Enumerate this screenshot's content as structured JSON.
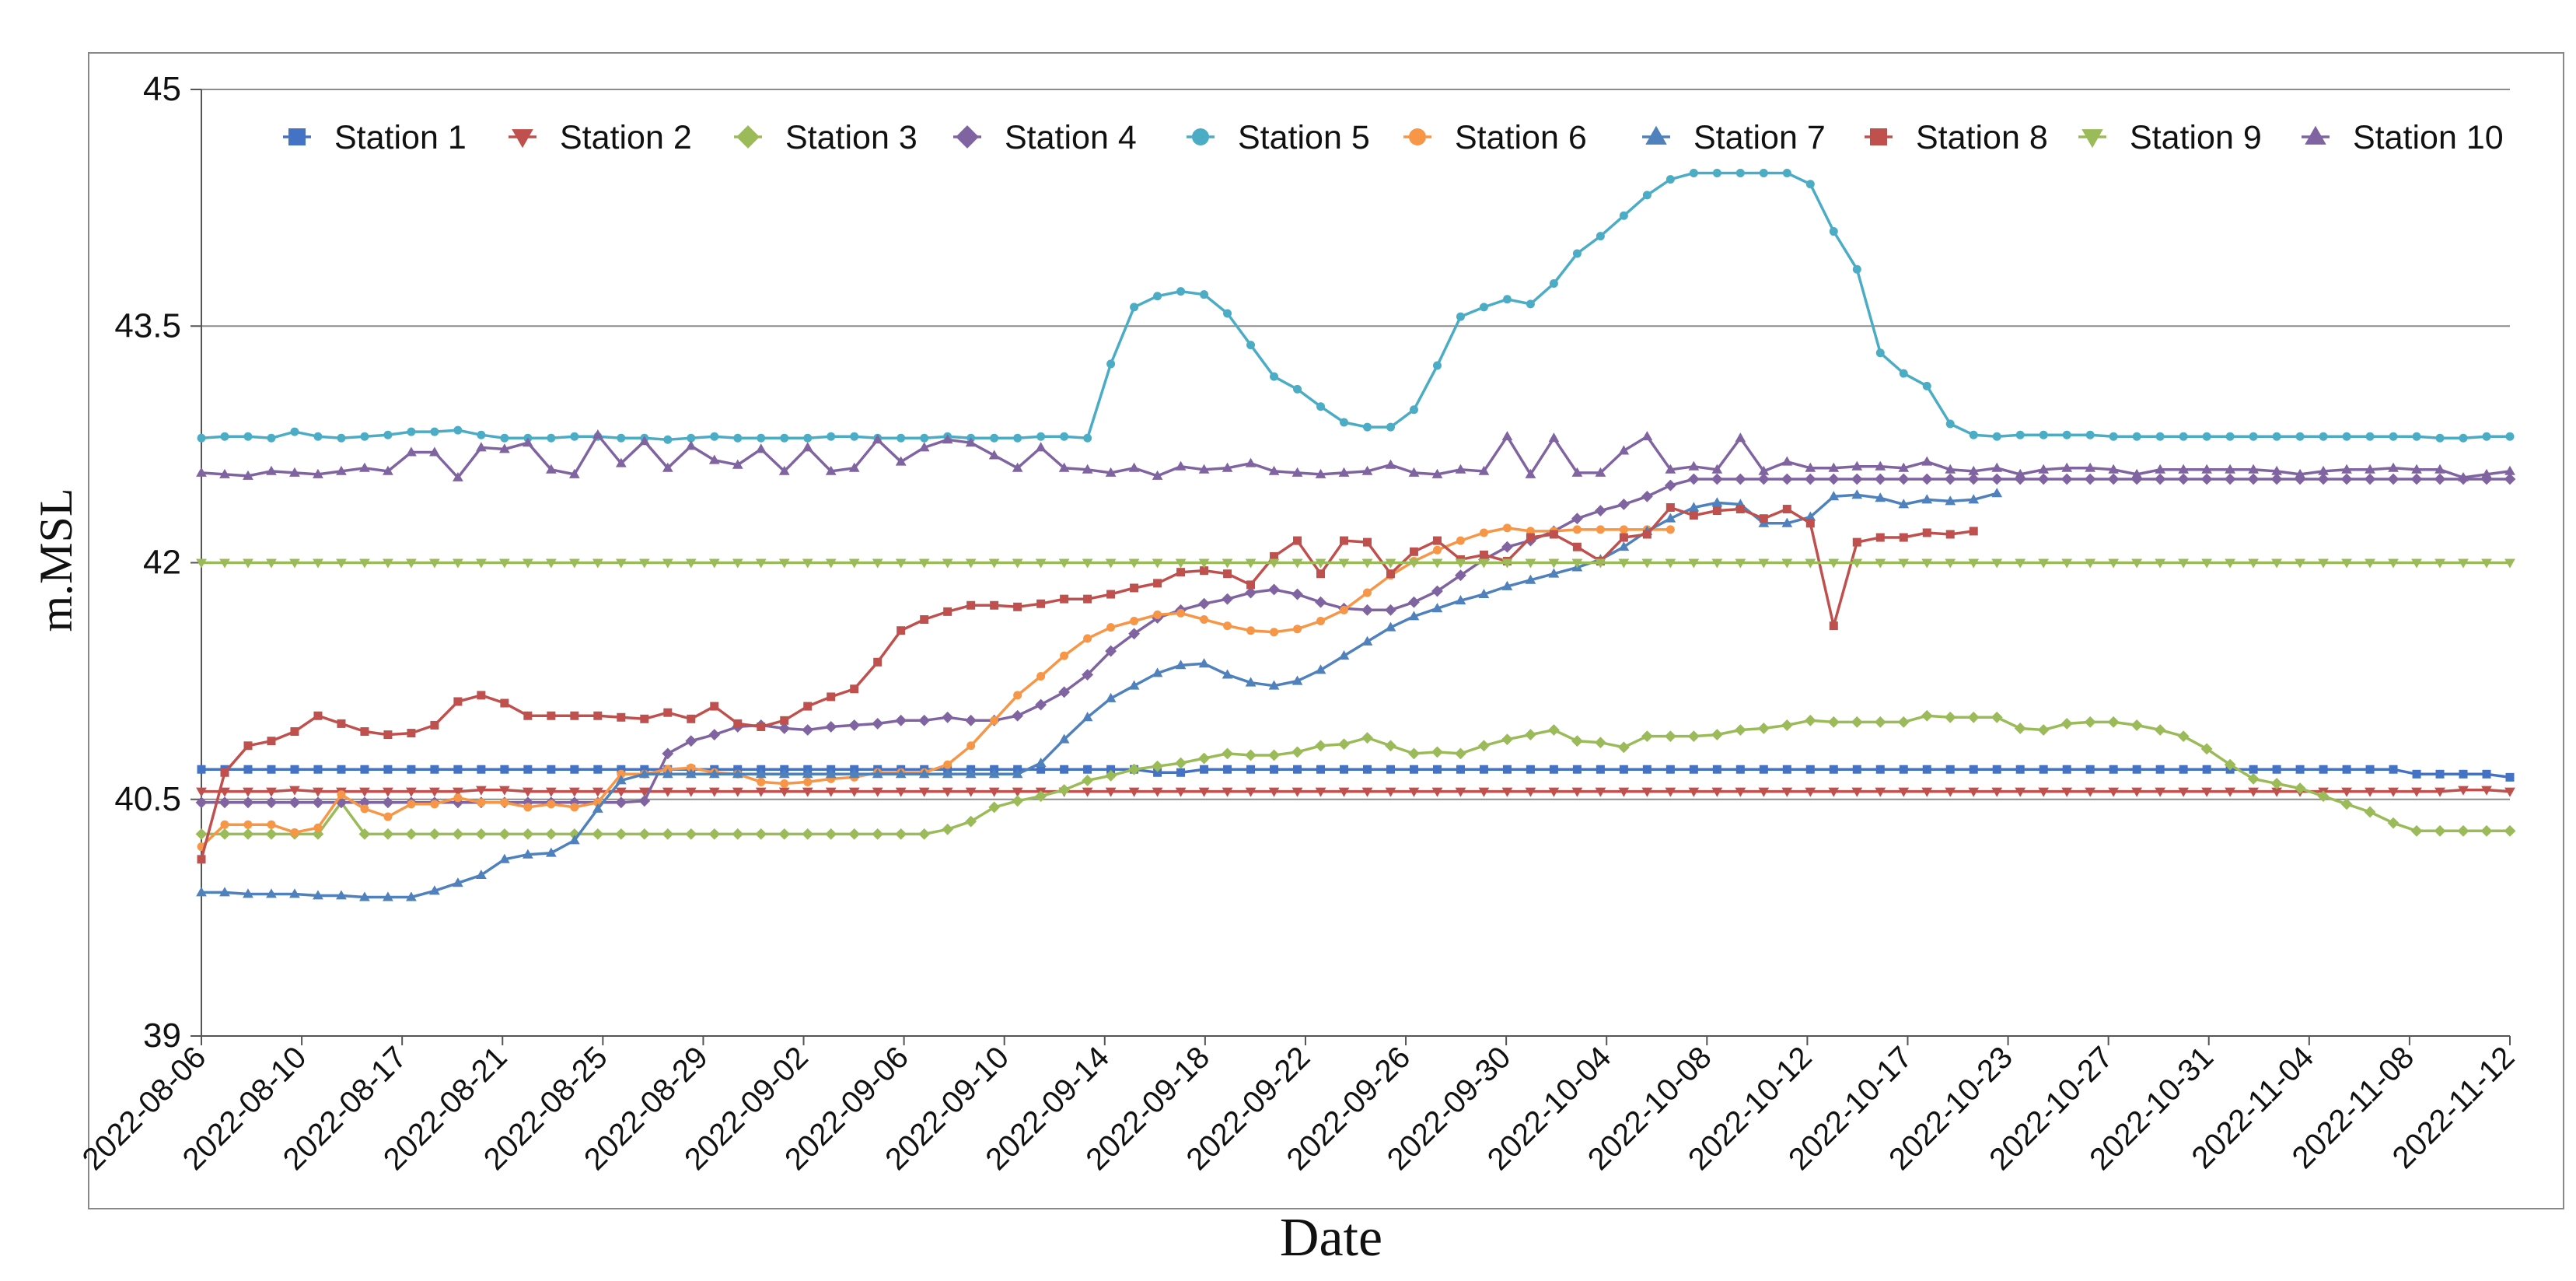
{
  "chart_data": {
    "type": "line",
    "title": "",
    "xlabel": "Date",
    "ylabel": "m.MSL",
    "ylim": [
      39,
      45
    ],
    "yticks": [
      "39",
      "40.5",
      "42",
      "43.5",
      "45"
    ],
    "grid": true,
    "legend_position": "top",
    "xtick_labels": [
      "2022-08-06",
      "2022-08-10",
      "2022-08-17",
      "2022-08-21",
      "2022-08-25",
      "2022-08-29",
      "2022-09-02",
      "2022-09-06",
      "2022-09-10",
      "2022-09-14",
      "2022-09-18",
      "2022-09-22",
      "2022-09-26",
      "2022-09-30",
      "2022-10-04",
      "2022-10-08",
      "2022-10-12",
      "2022-10-17",
      "2022-10-23",
      "2022-10-27",
      "2022-10-31",
      "2022-11-04",
      "2022-11-08",
      "2022-11-12"
    ],
    "n_points": 100,
    "series": [
      {
        "name": "Station 1",
        "color": "#4472c4",
        "marker": "square",
        "values": [
          40.69,
          40.69,
          40.69,
          40.69,
          40.69,
          40.69,
          40.69,
          40.69,
          40.69,
          40.69,
          40.69,
          40.69,
          40.69,
          40.69,
          40.69,
          40.69,
          40.69,
          40.69,
          40.69,
          40.69,
          40.69,
          40.69,
          40.69,
          40.69,
          40.69,
          40.69,
          40.69,
          40.69,
          40.69,
          40.69,
          40.69,
          40.69,
          40.69,
          40.69,
          40.69,
          40.69,
          40.69,
          40.69,
          40.69,
          40.69,
          40.69,
          40.67,
          40.67,
          40.69,
          40.69,
          40.69,
          40.69,
          40.69,
          40.69,
          40.69,
          40.69,
          40.69,
          40.69,
          40.69,
          40.69,
          40.69,
          40.69,
          40.69,
          40.69,
          40.69,
          40.69,
          40.69,
          40.69,
          40.69,
          40.69,
          40.69,
          40.69,
          40.69,
          40.69,
          40.69,
          40.69,
          40.69,
          40.69,
          40.69,
          40.69,
          40.69,
          40.69,
          40.69,
          40.69,
          40.69,
          40.69,
          40.69,
          40.69,
          40.69,
          40.69,
          40.69,
          40.69,
          40.69,
          40.69,
          40.69,
          40.69,
          40.69,
          40.69,
          40.69,
          40.69,
          40.66,
          40.66,
          40.66,
          40.66,
          40.64
        ]
      },
      {
        "name": "Station 2",
        "color": "#c0504d",
        "marker": "triangle-down",
        "values": [
          40.55,
          40.55,
          40.55,
          40.55,
          40.56,
          40.55,
          40.55,
          40.55,
          40.55,
          40.55,
          40.55,
          40.55,
          40.56,
          40.56,
          40.55,
          40.55,
          40.55,
          40.55,
          40.55,
          40.55,
          40.55,
          40.55,
          40.55,
          40.55,
          40.55,
          40.55,
          40.55,
          40.55,
          40.55,
          40.55,
          40.55,
          40.55,
          40.55,
          40.55,
          40.55,
          40.55,
          40.55,
          40.55,
          40.55,
          40.55,
          40.55,
          40.55,
          40.55,
          40.55,
          40.55,
          40.55,
          40.55,
          40.55,
          40.55,
          40.55,
          40.55,
          40.55,
          40.55,
          40.55,
          40.55,
          40.55,
          40.55,
          40.55,
          40.55,
          40.55,
          40.55,
          40.55,
          40.55,
          40.55,
          40.55,
          40.55,
          40.55,
          40.55,
          40.55,
          40.55,
          40.55,
          40.55,
          40.55,
          40.55,
          40.55,
          40.55,
          40.55,
          40.55,
          40.55,
          40.55,
          40.55,
          40.55,
          40.55,
          40.55,
          40.55,
          40.55,
          40.55,
          40.55,
          40.55,
          40.55,
          40.55,
          40.55,
          40.55,
          40.55,
          40.55,
          40.55,
          40.55,
          40.56,
          40.56,
          40.55
        ]
      },
      {
        "name": "Station 3",
        "color": "#9bbb59",
        "marker": "diamond",
        "values": [
          40.28,
          40.28,
          40.28,
          40.28,
          40.28,
          40.28,
          40.48,
          40.28,
          40.28,
          40.28,
          40.28,
          40.28,
          40.28,
          40.28,
          40.28,
          40.28,
          40.28,
          40.28,
          40.28,
          40.28,
          40.28,
          40.28,
          40.28,
          40.28,
          40.28,
          40.28,
          40.28,
          40.28,
          40.28,
          40.28,
          40.28,
          40.28,
          40.31,
          40.36,
          40.45,
          40.49,
          40.52,
          40.56,
          40.62,
          40.65,
          40.69,
          40.71,
          40.73,
          40.76,
          40.79,
          40.78,
          40.78,
          40.8,
          40.84,
          40.85,
          40.89,
          40.84,
          40.79,
          40.8,
          40.79,
          40.84,
          40.88,
          40.91,
          40.94,
          40.87,
          40.86,
          40.83,
          40.9,
          40.9,
          40.9,
          40.91,
          40.94,
          40.95,
          40.97,
          41.0,
          40.99,
          40.99,
          40.99,
          40.99,
          41.03,
          41.02,
          41.02,
          41.02,
          40.95,
          40.94,
          40.98,
          40.99,
          40.99,
          40.97,
          40.94,
          40.9,
          40.82,
          40.72,
          40.63,
          40.6,
          40.57,
          40.52,
          40.47,
          40.42,
          40.35,
          40.3,
          40.3,
          40.3,
          40.3,
          40.3
        ]
      },
      {
        "name": "Station 4",
        "color": "#8064a2",
        "marker": "diamond",
        "values": [
          40.48,
          40.48,
          40.48,
          40.48,
          40.48,
          40.48,
          40.48,
          40.48,
          40.48,
          40.48,
          40.48,
          40.48,
          40.48,
          40.48,
          40.48,
          40.48,
          40.48,
          40.48,
          40.48,
          40.49,
          40.79,
          40.87,
          40.91,
          40.96,
          40.97,
          40.95,
          40.94,
          40.96,
          40.97,
          40.98,
          41.0,
          41.0,
          41.02,
          41.0,
          41.0,
          41.03,
          41.1,
          41.18,
          41.29,
          41.44,
          41.55,
          41.65,
          41.7,
          41.74,
          41.77,
          41.81,
          41.83,
          41.8,
          41.75,
          41.71,
          41.7,
          41.7,
          41.75,
          41.82,
          41.92,
          42.02,
          42.1,
          42.14,
          42.2,
          42.28,
          42.33,
          42.37,
          42.42,
          42.49,
          42.53,
          42.53,
          42.53,
          42.53,
          42.53,
          42.53,
          42.53,
          42.53,
          42.53,
          42.53,
          42.53,
          42.53,
          42.53,
          42.53,
          42.53,
          42.53,
          42.53,
          42.53,
          42.53,
          42.53,
          42.53,
          42.53,
          42.53,
          42.53,
          42.53,
          42.53,
          42.53,
          42.53,
          42.53,
          42.53,
          42.53,
          42.53,
          42.53,
          42.53,
          42.53,
          42.53
        ]
      },
      {
        "name": "Station 5",
        "color": "#4bacc6",
        "marker": "circle",
        "values": [
          42.79,
          42.8,
          42.8,
          42.79,
          42.83,
          42.8,
          42.79,
          42.8,
          42.81,
          42.83,
          42.83,
          42.84,
          42.81,
          42.79,
          42.79,
          42.79,
          42.8,
          42.8,
          42.79,
          42.79,
          42.78,
          42.79,
          42.8,
          42.79,
          42.79,
          42.79,
          42.79,
          42.8,
          42.8,
          42.79,
          42.79,
          42.79,
          42.8,
          42.79,
          42.79,
          42.79,
          42.8,
          42.8,
          42.79,
          43.26,
          43.62,
          43.69,
          43.72,
          43.7,
          43.58,
          43.38,
          43.18,
          43.1,
          42.99,
          42.89,
          42.86,
          42.86,
          42.97,
          43.25,
          43.56,
          43.62,
          43.67,
          43.64,
          43.77,
          43.96,
          44.07,
          44.2,
          44.33,
          44.43,
          44.47,
          44.47,
          44.47,
          44.47,
          44.47,
          44.4,
          44.1,
          43.86,
          43.33,
          43.2,
          43.12,
          42.88,
          42.81,
          42.8,
          42.81,
          42.81,
          42.81,
          42.81,
          42.8,
          42.8,
          42.8,
          42.8,
          42.8,
          42.8,
          42.8,
          42.8,
          42.8,
          42.8,
          42.8,
          42.8,
          42.8,
          42.8,
          42.79,
          42.79,
          42.8,
          42.8
        ]
      },
      {
        "name": "Station 6",
        "color": "#f79646",
        "marker": "circle",
        "values": [
          40.2,
          40.34,
          40.34,
          40.34,
          40.29,
          40.32,
          40.53,
          40.44,
          40.39,
          40.47,
          40.47,
          40.51,
          40.48,
          40.48,
          40.45,
          40.47,
          40.45,
          40.48,
          40.66,
          40.66,
          40.69,
          40.7,
          40.67,
          40.66,
          40.61,
          40.6,
          40.61,
          40.63,
          40.64,
          40.67,
          40.67,
          40.67,
          40.72,
          40.84,
          41.0,
          41.16,
          41.28,
          41.41,
          41.52,
          41.59,
          41.63,
          41.67,
          41.68,
          41.64,
          41.6,
          41.57,
          41.56,
          41.58,
          41.63,
          41.7,
          41.81,
          41.92,
          42.01,
          42.08,
          42.14,
          42.19,
          42.22,
          42.2,
          42.2,
          42.21,
          42.21,
          42.21,
          42.21,
          42.21
        ]
      },
      {
        "name": "Station 7",
        "color": "#4f81bd",
        "marker": "triangle",
        "values": [
          39.91,
          39.91,
          39.9,
          39.9,
          39.9,
          39.89,
          39.89,
          39.88,
          39.88,
          39.88,
          39.92,
          39.97,
          40.02,
          40.12,
          40.15,
          40.16,
          40.24,
          40.44,
          40.62,
          40.66,
          40.66,
          40.66,
          40.66,
          40.66,
          40.66,
          40.66,
          40.66,
          40.66,
          40.66,
          40.66,
          40.66,
          40.66,
          40.66,
          40.66,
          40.66,
          40.66,
          40.73,
          40.88,
          41.02,
          41.14,
          41.22,
          41.3,
          41.35,
          41.36,
          41.29,
          41.24,
          41.22,
          41.25,
          41.32,
          41.41,
          41.5,
          41.59,
          41.66,
          41.71,
          41.76,
          41.8,
          41.85,
          41.89,
          41.93,
          41.97,
          42.02,
          42.1,
          42.2,
          42.28,
          42.35,
          42.38,
          42.37,
          42.25,
          42.25,
          42.29,
          42.42,
          42.43,
          42.41,
          42.37,
          42.4,
          42.39,
          42.4,
          42.44
        ]
      },
      {
        "name": "Station 8",
        "color": "#c0504d",
        "marker": "square",
        "values": [
          40.12,
          40.67,
          40.84,
          40.87,
          40.93,
          41.03,
          40.98,
          40.93,
          40.91,
          40.92,
          40.97,
          41.12,
          41.16,
          41.11,
          41.03,
          41.03,
          41.03,
          41.03,
          41.02,
          41.01,
          41.05,
          41.01,
          41.09,
          40.98,
          40.96,
          41.0,
          41.09,
          41.15,
          41.2,
          41.37,
          41.57,
          41.64,
          41.69,
          41.73,
          41.73,
          41.72,
          41.74,
          41.77,
          41.77,
          41.8,
          41.84,
          41.87,
          41.94,
          41.95,
          41.93,
          41.86,
          42.04,
          42.14,
          41.93,
          42.14,
          42.13,
          41.93,
          42.07,
          42.14,
          42.02,
          42.05,
          42.01,
          42.16,
          42.18,
          42.1,
          42.01,
          42.16,
          42.18,
          42.35,
          42.3,
          42.33,
          42.34,
          42.28,
          42.34,
          42.25,
          41.6,
          42.13,
          42.16,
          42.16,
          42.19,
          42.18,
          42.2
        ]
      },
      {
        "name": "Station 9",
        "color": "#9bbb59",
        "marker": "triangle-down",
        "values": [
          42.0,
          42.0,
          42.0,
          42.0,
          42.0,
          42.0,
          42.0,
          42.0,
          42.0,
          42.0,
          42.0,
          42.0,
          42.0,
          42.0,
          42.0,
          42.0,
          42.0,
          42.0,
          42.0,
          42.0,
          42.0,
          42.0,
          42.0,
          42.0,
          42.0,
          42.0,
          42.0,
          42.0,
          42.0,
          42.0,
          42.0,
          42.0,
          42.0,
          42.0,
          42.0,
          42.0,
          42.0,
          42.0,
          42.0,
          42.0,
          42.0,
          42.0,
          42.0,
          42.0,
          42.0,
          42.0,
          42.0,
          42.0,
          42.0,
          42.0,
          42.0,
          42.0,
          42.0,
          42.0,
          42.0,
          42.0,
          42.0,
          42.0,
          42.0,
          42.0,
          42.0,
          42.0,
          42.0,
          42.0,
          42.0,
          42.0,
          42.0,
          42.0,
          42.0,
          42.0,
          42.0,
          42.0,
          42.0,
          42.0,
          42.0,
          42.0,
          42.0,
          42.0,
          42.0,
          42.0,
          42.0,
          42.0,
          42.0,
          42.0,
          42.0,
          42.0,
          42.0,
          42.0,
          42.0,
          42.0,
          42.0,
          42.0,
          42.0,
          42.0,
          42.0,
          42.0,
          42.0,
          42.0,
          42.0,
          42.0
        ]
      },
      {
        "name": "Station 10",
        "color": "#8064a2",
        "marker": "triangle",
        "values": [
          42.57,
          42.56,
          42.55,
          42.58,
          42.57,
          42.56,
          42.58,
          42.6,
          42.58,
          42.7,
          42.7,
          42.54,
          42.73,
          42.72,
          42.76,
          42.59,
          42.56,
          42.81,
          42.63,
          42.77,
          42.6,
          42.74,
          42.65,
          42.62,
          42.72,
          42.58,
          42.73,
          42.58,
          42.6,
          42.78,
          42.64,
          42.73,
          42.78,
          42.76,
          42.68,
          42.6,
          42.73,
          42.6,
          42.59,
          42.57,
          42.6,
          42.55,
          42.61,
          42.59,
          42.6,
          42.63,
          42.58,
          42.57,
          42.56,
          42.57,
          42.58,
          42.62,
          42.57,
          42.56,
          42.59,
          42.58,
          42.8,
          42.56,
          42.79,
          42.57,
          42.57,
          42.71,
          42.8,
          42.59,
          42.61,
          42.59,
          42.79,
          42.58,
          42.64,
          42.6,
          42.6,
          42.61,
          42.61,
          42.6,
          42.64,
          42.59,
          42.58,
          42.6,
          42.56,
          42.59,
          42.6,
          42.6,
          42.59,
          42.56,
          42.59,
          42.59,
          42.59,
          42.59,
          42.59,
          42.58,
          42.56,
          42.58,
          42.59,
          42.59,
          42.6,
          42.59,
          42.59,
          42.54,
          42.56,
          42.58
        ]
      }
    ]
  }
}
